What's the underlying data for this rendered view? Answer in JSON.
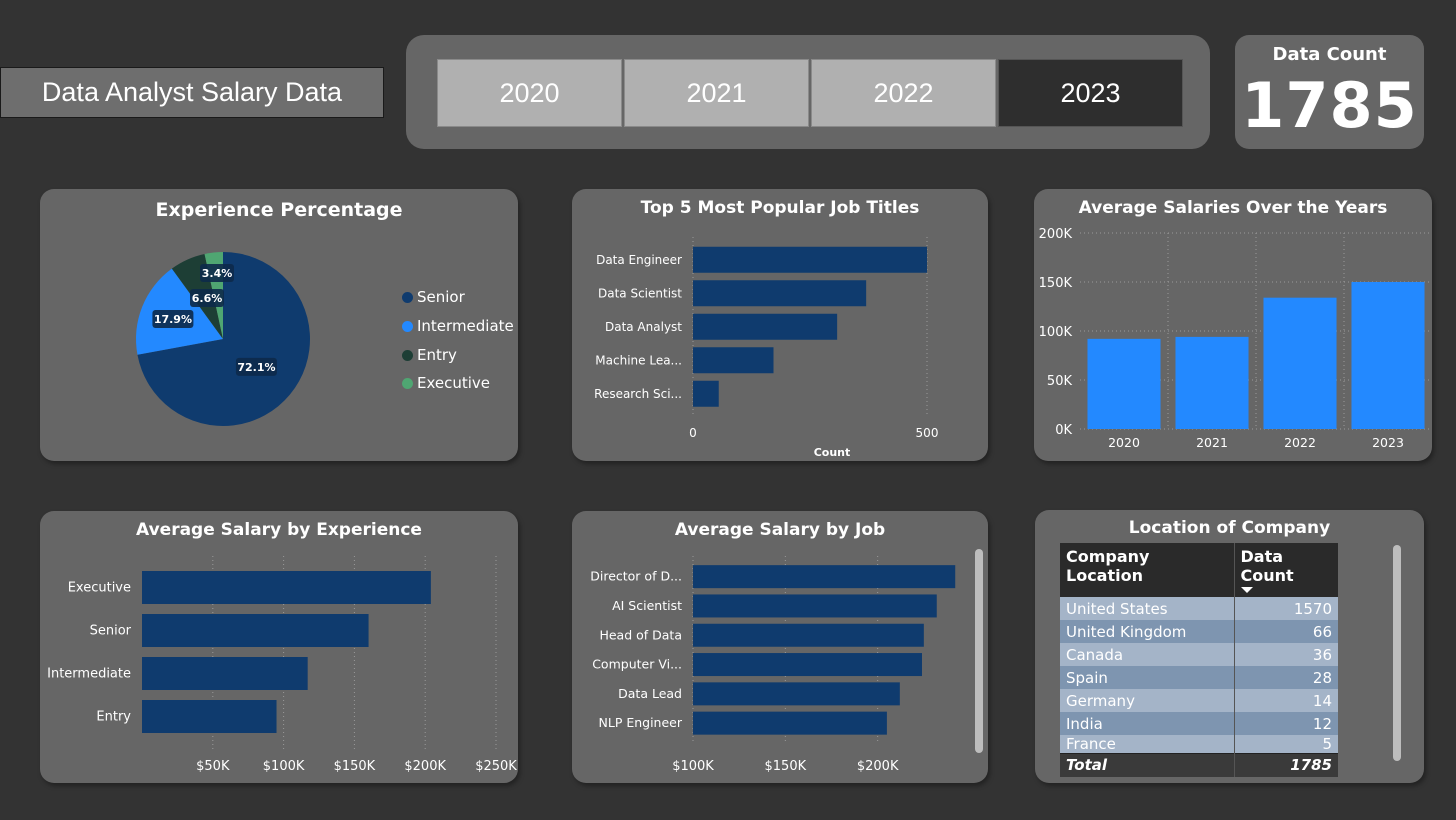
{
  "header": {
    "title": "Data Analyst Salary Data"
  },
  "year_slicer": {
    "years": [
      {
        "label": "2020",
        "selected": false
      },
      {
        "label": "2021",
        "selected": false
      },
      {
        "label": "2022",
        "selected": false
      },
      {
        "label": "2023",
        "selected": true
      }
    ]
  },
  "data_count_card": {
    "label": "Data Count",
    "value": "1785"
  },
  "colors": {
    "senior": "#0f3b6e",
    "intermediate": "#2389ff",
    "entry": "#1d3e35",
    "executive": "#4fa672",
    "bar_dark": "#0f3b6e",
    "bar_bright": "#2389ff"
  },
  "experience_chart": {
    "title": "Experience Percentage",
    "chart_data": {
      "type": "pie",
      "labels": [
        "Senior",
        "Intermediate",
        "Entry",
        "Executive"
      ],
      "values": [
        72.1,
        17.9,
        6.6,
        3.4
      ],
      "data_labels": [
        "72.1%",
        "17.9%",
        "6.6%",
        "3.4%"
      ],
      "legend": "right"
    }
  },
  "top_jobs_chart": {
    "title": "Top 5 Most Popular Job Titles",
    "chart_data": {
      "type": "bar",
      "orientation": "horizontal",
      "categories": [
        "Data Engineer",
        "Data Scientist",
        "Data Analyst",
        "Machine Lea...",
        "Research Sci..."
      ],
      "values": [
        500,
        370,
        308,
        172,
        55
      ],
      "xlabel": "Count",
      "xlim": [
        0,
        500
      ],
      "xticks": [
        "0",
        "500"
      ],
      "grid": true
    }
  },
  "avg_salary_years_chart": {
    "title": "Average Salaries Over the Years",
    "chart_data": {
      "type": "bar",
      "categories": [
        "2020",
        "2021",
        "2022",
        "2023"
      ],
      "values": [
        92000,
        94000,
        134000,
        150000
      ],
      "ylim": [
        0,
        200000
      ],
      "yticks": [
        "0K",
        "50K",
        "100K",
        "150K",
        "200K"
      ],
      "grid": true
    }
  },
  "salary_by_experience_chart": {
    "title": "Average Salary by Experience",
    "chart_data": {
      "type": "bar",
      "orientation": "horizontal",
      "categories": [
        "Executive",
        "Senior",
        "Intermediate",
        "Entry"
      ],
      "values": [
        204000,
        160000,
        117000,
        95000
      ],
      "xlim": [
        0,
        250000
      ],
      "xticks": [
        "$50K",
        "$100K",
        "$150K",
        "$200K",
        "$250K"
      ],
      "xtick_values": [
        50000,
        100000,
        150000,
        200000,
        250000
      ],
      "grid": true
    }
  },
  "salary_by_job_chart": {
    "title": "Average Salary by Job",
    "chart_data": {
      "type": "bar",
      "orientation": "horizontal",
      "categories": [
        "Director of D...",
        "AI Scientist",
        "Head of Data",
        "Computer Vi...",
        "Data Lead",
        "NLP Engineer"
      ],
      "values": [
        242000,
        232000,
        225000,
        224000,
        212000,
        205000
      ],
      "xlim": [
        100000,
        250000
      ],
      "xticks": [
        "$100K",
        "$150K",
        "$200K"
      ],
      "xtick_values": [
        100000,
        150000,
        200000
      ],
      "grid": true
    }
  },
  "location_table": {
    "title": "Location of Company",
    "columns": [
      "Company Location",
      "Data Count"
    ],
    "rows": [
      {
        "location": "United States",
        "count": "1570"
      },
      {
        "location": "United Kingdom",
        "count": "66"
      },
      {
        "location": "Canada",
        "count": "36"
      },
      {
        "location": "Spain",
        "count": "28"
      },
      {
        "location": "Germany",
        "count": "14"
      },
      {
        "location": "India",
        "count": "12"
      },
      {
        "location": "France",
        "count": "5"
      }
    ],
    "total": {
      "label": "Total",
      "count": "1785"
    }
  }
}
